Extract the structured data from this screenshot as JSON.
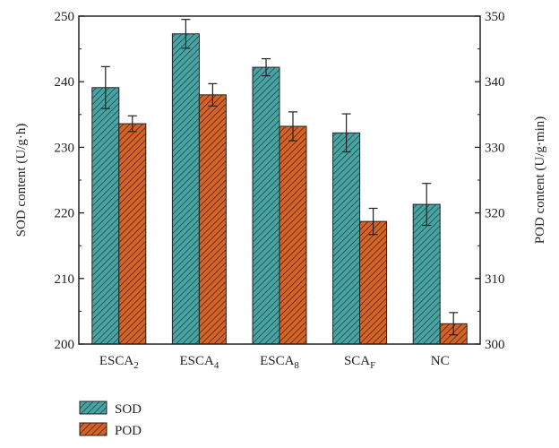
{
  "chart_data": {
    "type": "bar",
    "categories": [
      {
        "base": "ESCA",
        "sub": "2"
      },
      {
        "base": "ESCA",
        "sub": "4"
      },
      {
        "base": "ESCA",
        "sub": "8"
      },
      {
        "base": "SCA",
        "sub": "F"
      },
      {
        "base": "NC",
        "sub": ""
      }
    ],
    "left_axis": {
      "label": "SOD content (U/g·h)",
      "ylim": [
        200,
        250
      ],
      "ticks": [
        200,
        210,
        220,
        230,
        240,
        250
      ]
    },
    "right_axis": {
      "label": "POD content (U/g·min)",
      "ylim": [
        300,
        350
      ],
      "ticks": [
        300,
        310,
        320,
        330,
        340,
        350
      ]
    },
    "series": [
      {
        "name": "SOD",
        "axis": "left",
        "color": "#4aa3a3",
        "values": [
          239.1,
          247.3,
          242.2,
          232.2,
          221.3
        ],
        "errors": [
          3.2,
          2.2,
          1.3,
          2.9,
          3.2
        ]
      },
      {
        "name": "POD",
        "axis": "right",
        "color": "#d2642a",
        "values": [
          333.6,
          338.0,
          333.2,
          318.7,
          303.1
        ],
        "errors": [
          1.2,
          1.7,
          2.2,
          2.0,
          1.7
        ]
      }
    ],
    "legend": {
      "position": "bottom-left"
    },
    "grid": false
  }
}
